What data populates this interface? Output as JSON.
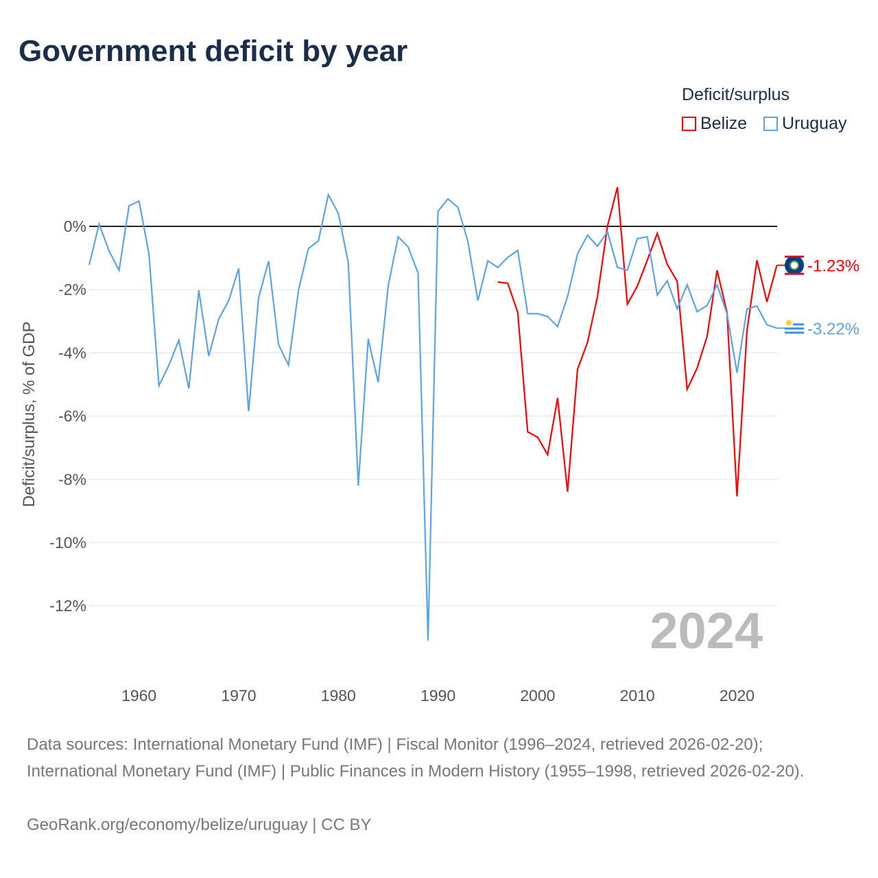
{
  "title": "Government deficit by year",
  "legend": {
    "title": "Deficit/surplus",
    "items": [
      {
        "name": "Belize",
        "color": "#ff0000"
      },
      {
        "name": "Uruguay",
        "color": "#5aa5ea"
      }
    ]
  },
  "footer": {
    "sources": "Data sources: International Monetary Fund (IMF) | Fiscal Monitor (1996–2024, retrieved 2026-02-20); International Monetary Fund (IMF) | Public Finances in Modern History (1955–1998, retrieved 2026-02-20).",
    "credit": "GeoRank.org/economy/belize/uruguay | CC BY"
  },
  "chart_data": {
    "type": "line",
    "title": "Government deficit by year",
    "ylabel": "Deficit/surplus, % of GDP",
    "xlabel": "",
    "year_watermark": "2024",
    "xlim": [
      1955,
      2024
    ],
    "ylim": [
      -13.5,
      1.5
    ],
    "xticks": [
      1960,
      1970,
      1980,
      1990,
      2000,
      2010,
      2020
    ],
    "yticks": [
      0,
      -2,
      -4,
      -6,
      -8,
      -10,
      -12
    ],
    "ytick_labels": [
      "0%",
      "-2%",
      "-4%",
      "-6%",
      "-8%",
      "-10%",
      "-12%"
    ],
    "series": [
      {
        "name": "Uruguay",
        "color": "#5aa5ea",
        "end_label": "-3.22%",
        "start_year": 1955,
        "values": [
          -1.22,
          0.07,
          -0.78,
          -1.39,
          0.65,
          0.8,
          -0.87,
          -5.04,
          -4.39,
          -3.6,
          -5.13,
          -2.02,
          -4.1,
          -2.93,
          -2.35,
          -1.33,
          -5.85,
          -2.26,
          -1.1,
          -3.74,
          -4.39,
          -2.02,
          -0.7,
          -0.46,
          1.0,
          0.41,
          -1.15,
          -8.2,
          -3.56,
          -4.93,
          -1.89,
          -0.33,
          -0.65,
          -1.48,
          -13.1,
          0.48,
          0.87,
          0.6,
          -0.48,
          -2.35,
          -1.09,
          -1.3,
          -0.98,
          -0.76,
          -2.76,
          -2.76,
          -2.85,
          -3.17,
          -2.22,
          -0.87,
          -0.28,
          -0.63,
          -0.17,
          -1.3,
          -1.39,
          -0.39,
          -0.33,
          -2.17,
          -1.72,
          -2.61,
          -1.85,
          -2.7,
          -2.5,
          -1.85,
          -2.76,
          -4.63,
          -2.61,
          -2.52,
          -3.11,
          -3.22
        ]
      },
      {
        "name": "Belize",
        "color": "#ff0000",
        "end_label": "-1.23%",
        "start_year": 1996,
        "values": [
          -1.76,
          -1.8,
          -2.72,
          -6.5,
          -6.67,
          -7.22,
          -5.43,
          -8.39,
          -4.52,
          -3.67,
          -2.22,
          0.0,
          1.24,
          -2.46,
          -1.89,
          -1.07,
          -0.22,
          -1.2,
          -1.74,
          -5.15,
          -4.48,
          -3.48,
          -1.39,
          -2.72,
          -8.54,
          -3.3,
          -1.07,
          -2.39,
          -1.23
        ]
      }
    ]
  }
}
